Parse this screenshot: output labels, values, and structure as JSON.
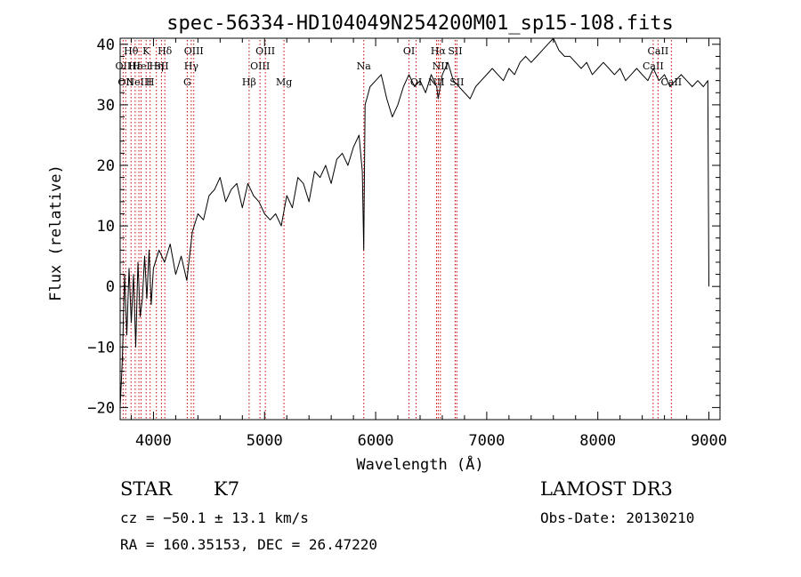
{
  "chart_data": {
    "type": "line",
    "title": "spec-56334-HD104049N254200M01_sp15-108.fits",
    "xlabel": "Wavelength (Å)",
    "ylabel": "Flux (relative)",
    "xlim": [
      3700,
      9100
    ],
    "ylim": [
      -22,
      41
    ],
    "xticks": [
      4000,
      5000,
      6000,
      7000,
      8000,
      9000
    ],
    "xtick_labels": [
      "4000",
      "5000",
      "6000",
      "7000",
      "8000",
      "9000"
    ],
    "yticks": [
      -20,
      -10,
      0,
      10,
      20,
      30,
      40
    ],
    "ytick_labels": [
      "−20",
      "−10",
      "0",
      "10",
      "20",
      "30",
      "40"
    ],
    "grid": false,
    "legend": "none",
    "line_color": "#000000",
    "marker_color": "#cc0000",
    "series": [
      {
        "x": [
          3700,
          3720,
          3740,
          3760,
          3780,
          3800,
          3820,
          3840,
          3860,
          3880,
          3900,
          3920,
          3940,
          3960,
          3980,
          4000,
          4050,
          4100,
          4150,
          4200,
          4250,
          4300,
          4350,
          4400,
          4450,
          4500,
          4550,
          4600,
          4650,
          4700,
          4750,
          4800,
          4850,
          4900,
          4950,
          5000,
          5050,
          5100,
          5150,
          5200,
          5250,
          5300,
          5350,
          5400,
          5450,
          5500,
          5550,
          5600,
          5650,
          5700,
          5750,
          5800,
          5850,
          5880,
          5893,
          5905,
          5920,
          5950,
          6000,
          6050,
          6100,
          6150,
          6200,
          6250,
          6300,
          6350,
          6400,
          6450,
          6500,
          6550,
          6563,
          6600,
          6650,
          6700,
          6750,
          6800,
          6850,
          6900,
          6950,
          7000,
          7050,
          7100,
          7150,
          7200,
          7250,
          7300,
          7350,
          7400,
          7450,
          7500,
          7550,
          7600,
          7650,
          7700,
          7750,
          7800,
          7850,
          7900,
          7950,
          8000,
          8050,
          8100,
          8150,
          8200,
          8250,
          8300,
          8350,
          8400,
          8450,
          8500,
          8550,
          8600,
          8650,
          8700,
          8750,
          8800,
          8850,
          8900,
          8950,
          8990,
          9000
        ],
        "y": [
          -20,
          -12,
          2,
          -8,
          3,
          -6,
          2,
          -10,
          4,
          -5,
          -2,
          5,
          -2,
          6,
          -3,
          3,
          6,
          4,
          7,
          2,
          5,
          1,
          9,
          12,
          11,
          15,
          16,
          18,
          14,
          16,
          17,
          13,
          17,
          15,
          14,
          12,
          11,
          12,
          10,
          15,
          13,
          18,
          17,
          14,
          19,
          18,
          20,
          17,
          21,
          22,
          20,
          23,
          25,
          19,
          6,
          30,
          31,
          33,
          34,
          35,
          31,
          28,
          30,
          33,
          35,
          33,
          34,
          32,
          35,
          33,
          31,
          35,
          37,
          34,
          33,
          32,
          31,
          33,
          34,
          35,
          36,
          35,
          34,
          36,
          35,
          37,
          38,
          37,
          38,
          39,
          40,
          41,
          39,
          38,
          38,
          37,
          36,
          37,
          35,
          36,
          37,
          36,
          35,
          36,
          34,
          35,
          36,
          35,
          34,
          36,
          34,
          35,
          33,
          34,
          35,
          34,
          33,
          34,
          33,
          34,
          0
        ]
      }
    ],
    "line_markers": [
      {
        "x": 3727,
        "labels": [
          "OII"
        ],
        "row": 1
      },
      {
        "x": 3750,
        "labels": [
          "OII"
        ],
        "row": 2
      },
      {
        "x": 3798,
        "labels": [
          "Hθ"
        ],
        "row": 0
      },
      {
        "x": 3835,
        "labels": [
          "Hε"
        ],
        "row": 1
      },
      {
        "x": 3869,
        "labels": [
          "NeIII"
        ],
        "row": 2
      },
      {
        "x": 3889,
        "labels": [
          "HeI"
        ],
        "row": 1
      },
      {
        "x": 3934,
        "labels": [
          "K"
        ],
        "row": 0
      },
      {
        "x": 3970,
        "labels": [
          "H"
        ],
        "row": 2
      },
      {
        "x": 4026,
        "labels": [
          "Hη"
        ],
        "row": 1
      },
      {
        "x": 4072,
        "labels": [
          "SII"
        ],
        "row": 1
      },
      {
        "x": 4102,
        "labels": [
          "Hδ"
        ],
        "row": 0
      },
      {
        "x": 4304,
        "labels": [
          "G"
        ],
        "row": 2
      },
      {
        "x": 4340,
        "labels": [
          "Hγ"
        ],
        "row": 1
      },
      {
        "x": 4363,
        "labels": [
          "OIII"
        ],
        "row": 0
      },
      {
        "x": 4861,
        "labels": [
          "Hβ"
        ],
        "row": 2
      },
      {
        "x": 4959,
        "labels": [
          "OIII"
        ],
        "row": 1
      },
      {
        "x": 5007,
        "labels": [
          "OIII"
        ],
        "row": 0
      },
      {
        "x": 5175,
        "labels": [
          "Mg"
        ],
        "row": 2
      },
      {
        "x": 5893,
        "labels": [
          "Na"
        ],
        "row": 1
      },
      {
        "x": 6300,
        "labels": [
          "OI"
        ],
        "row": 0
      },
      {
        "x": 6364,
        "labels": [
          "OI"
        ],
        "row": 2
      },
      {
        "x": 6548,
        "labels": [
          "NII"
        ],
        "row": 2
      },
      {
        "x": 6563,
        "labels": [
          "Hα"
        ],
        "row": 0
      },
      {
        "x": 6583,
        "labels": [
          "NII"
        ],
        "row": 1
      },
      {
        "x": 6716,
        "labels": [
          "SII"
        ],
        "row": 0
      },
      {
        "x": 6731,
        "labels": [
          "SII"
        ],
        "row": 2
      },
      {
        "x": 8498,
        "labels": [
          "CaII"
        ],
        "row": 1
      },
      {
        "x": 8542,
        "labels": [
          "CaII"
        ],
        "row": 0
      },
      {
        "x": 8662,
        "labels": [
          "CaII"
        ],
        "row": 2
      }
    ]
  },
  "footer": {
    "object_class": "STAR",
    "subclass": "K7",
    "survey": "LAMOST DR3",
    "redshift": "cz = −50.1 ± 13.1 km/s",
    "obs_date": "Obs-Date: 20130210",
    "coords": "RA = 160.35153, DEC =  26.47220"
  }
}
